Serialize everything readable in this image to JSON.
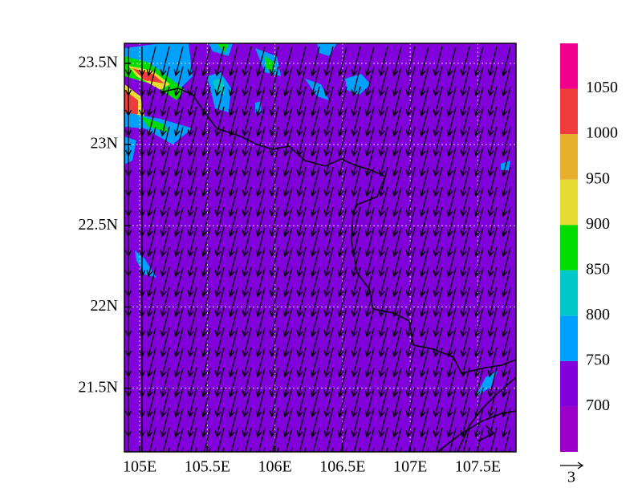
{
  "map": {
    "xlim": [
      104.887,
      107.782
    ],
    "ylim": [
      21.108,
      23.623
    ],
    "lon_ticks": [
      {
        "value": 105,
        "label": "105E"
      },
      {
        "value": 105.5,
        "label": "105.5E"
      },
      {
        "value": 106,
        "label": "106E"
      },
      {
        "value": 106.5,
        "label": "106.5E"
      },
      {
        "value": 107,
        "label": "107E"
      },
      {
        "value": 107.5,
        "label": "107.5E"
      }
    ],
    "lat_ticks": [
      {
        "value": 23.5,
        "label": "23.5N"
      },
      {
        "value": 23,
        "label": "23N"
      },
      {
        "value": 22.5,
        "label": "22.5N"
      },
      {
        "value": 22,
        "label": "22N"
      },
      {
        "value": 21.5,
        "label": "21.5N"
      }
    ],
    "grid": true,
    "field_color": "#8200dc",
    "colorbar": {
      "range": [
        650,
        1100
      ],
      "levels": [
        700,
        750,
        800,
        850,
        900,
        950,
        1000,
        1050
      ],
      "colors": [
        "#9a00c8",
        "#8200dc",
        "#00a0ff",
        "#00c8c8",
        "#00dc00",
        "#e6dc32",
        "#e6af2d",
        "#f03c3c",
        "#f0008c"
      ]
    },
    "reference_vector": "3"
  }
}
